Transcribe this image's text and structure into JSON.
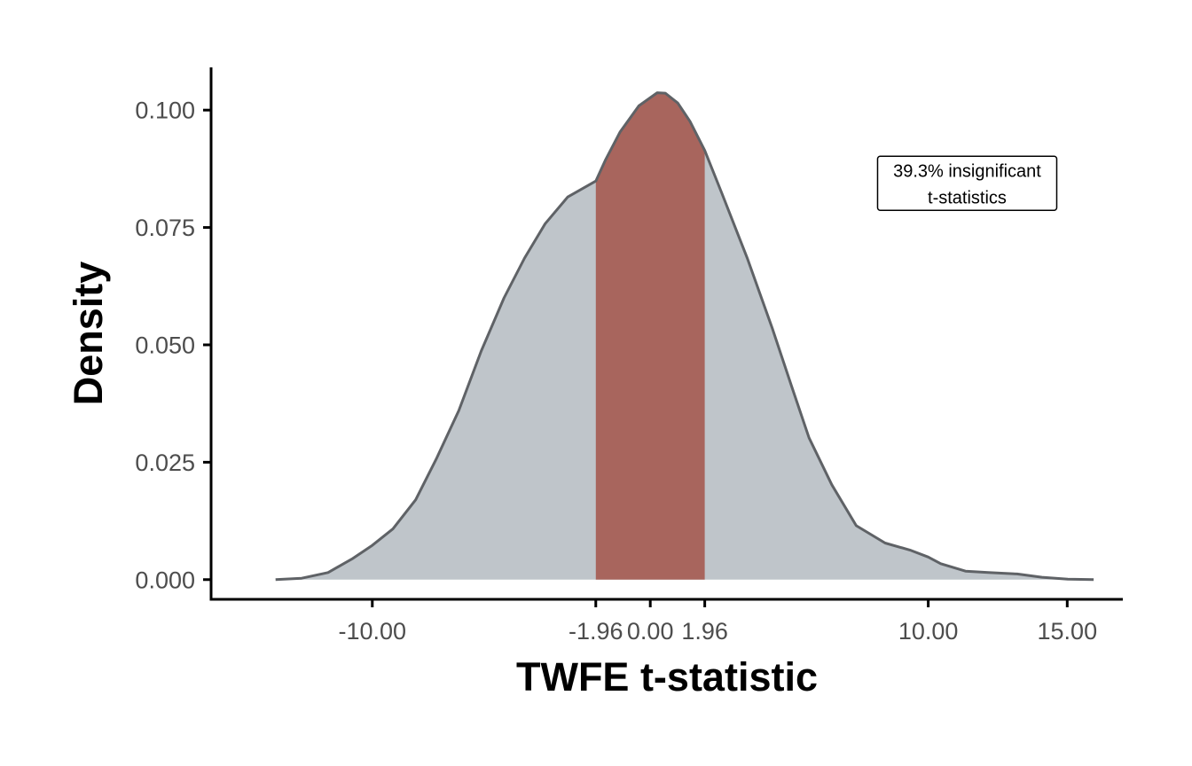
{
  "chart_data": {
    "type": "area",
    "xlabel": "TWFE t-statistic",
    "ylabel": "Density",
    "xlim": [
      -15.8,
      17.0
    ],
    "ylim": [
      -0.0042,
      0.1091
    ],
    "x_ticks": [
      -10.0,
      -1.96,
      0.0,
      1.96,
      10.0,
      15.0
    ],
    "x_tick_labels": [
      "-10.00",
      "-1.96",
      "0.00",
      "1.96",
      "10.00",
      "15.00"
    ],
    "y_ticks": [
      0.0,
      0.025,
      0.05,
      0.075,
      0.1
    ],
    "y_tick_labels": [
      "0.000",
      "0.025",
      "0.050",
      "0.075",
      "0.100"
    ],
    "grid": false,
    "legend": "none",
    "shaded_interval": [
      -1.96,
      1.96
    ],
    "annotation": {
      "line1": "39.3% insignificant",
      "line2": "t-statistics"
    },
    "series": [
      {
        "x": [
          -13.48,
          -12.54,
          -11.59,
          -10.7,
          -10.0,
          -9.26,
          -8.44,
          -7.7,
          -6.89,
          -6.08,
          -5.26,
          -4.52,
          -3.78,
          -2.97,
          -1.96,
          -1.6,
          -1.08,
          -0.41,
          0.25,
          0.54,
          0.99,
          1.43,
          1.96,
          2.58,
          3.5,
          4.39,
          5.09,
          5.71,
          6.53,
          7.41,
          8.45,
          9.34,
          10.0,
          10.45,
          11.34,
          12.16,
          13.2,
          14.09,
          15.02,
          15.95
        ],
        "y": [
          0.0,
          0.0003,
          0.0015,
          0.0045,
          0.0073,
          0.0108,
          0.017,
          0.0257,
          0.036,
          0.0487,
          0.06,
          0.0685,
          0.0758,
          0.0815,
          0.0849,
          0.0895,
          0.0954,
          0.1009,
          0.1037,
          0.1036,
          0.1015,
          0.0976,
          0.0914,
          0.0822,
          0.0683,
          0.0535,
          0.0411,
          0.0302,
          0.0202,
          0.0115,
          0.0078,
          0.0063,
          0.0048,
          0.0034,
          0.0018,
          0.0015,
          0.0012,
          0.0005,
          0.0001,
          0.0
        ]
      }
    ],
    "colors": {
      "fill": "#bfc5ca",
      "shaded": "#a8655d",
      "outline": "#5f6266",
      "axis": "#000000",
      "tick_text": "#4d4d4d"
    }
  }
}
